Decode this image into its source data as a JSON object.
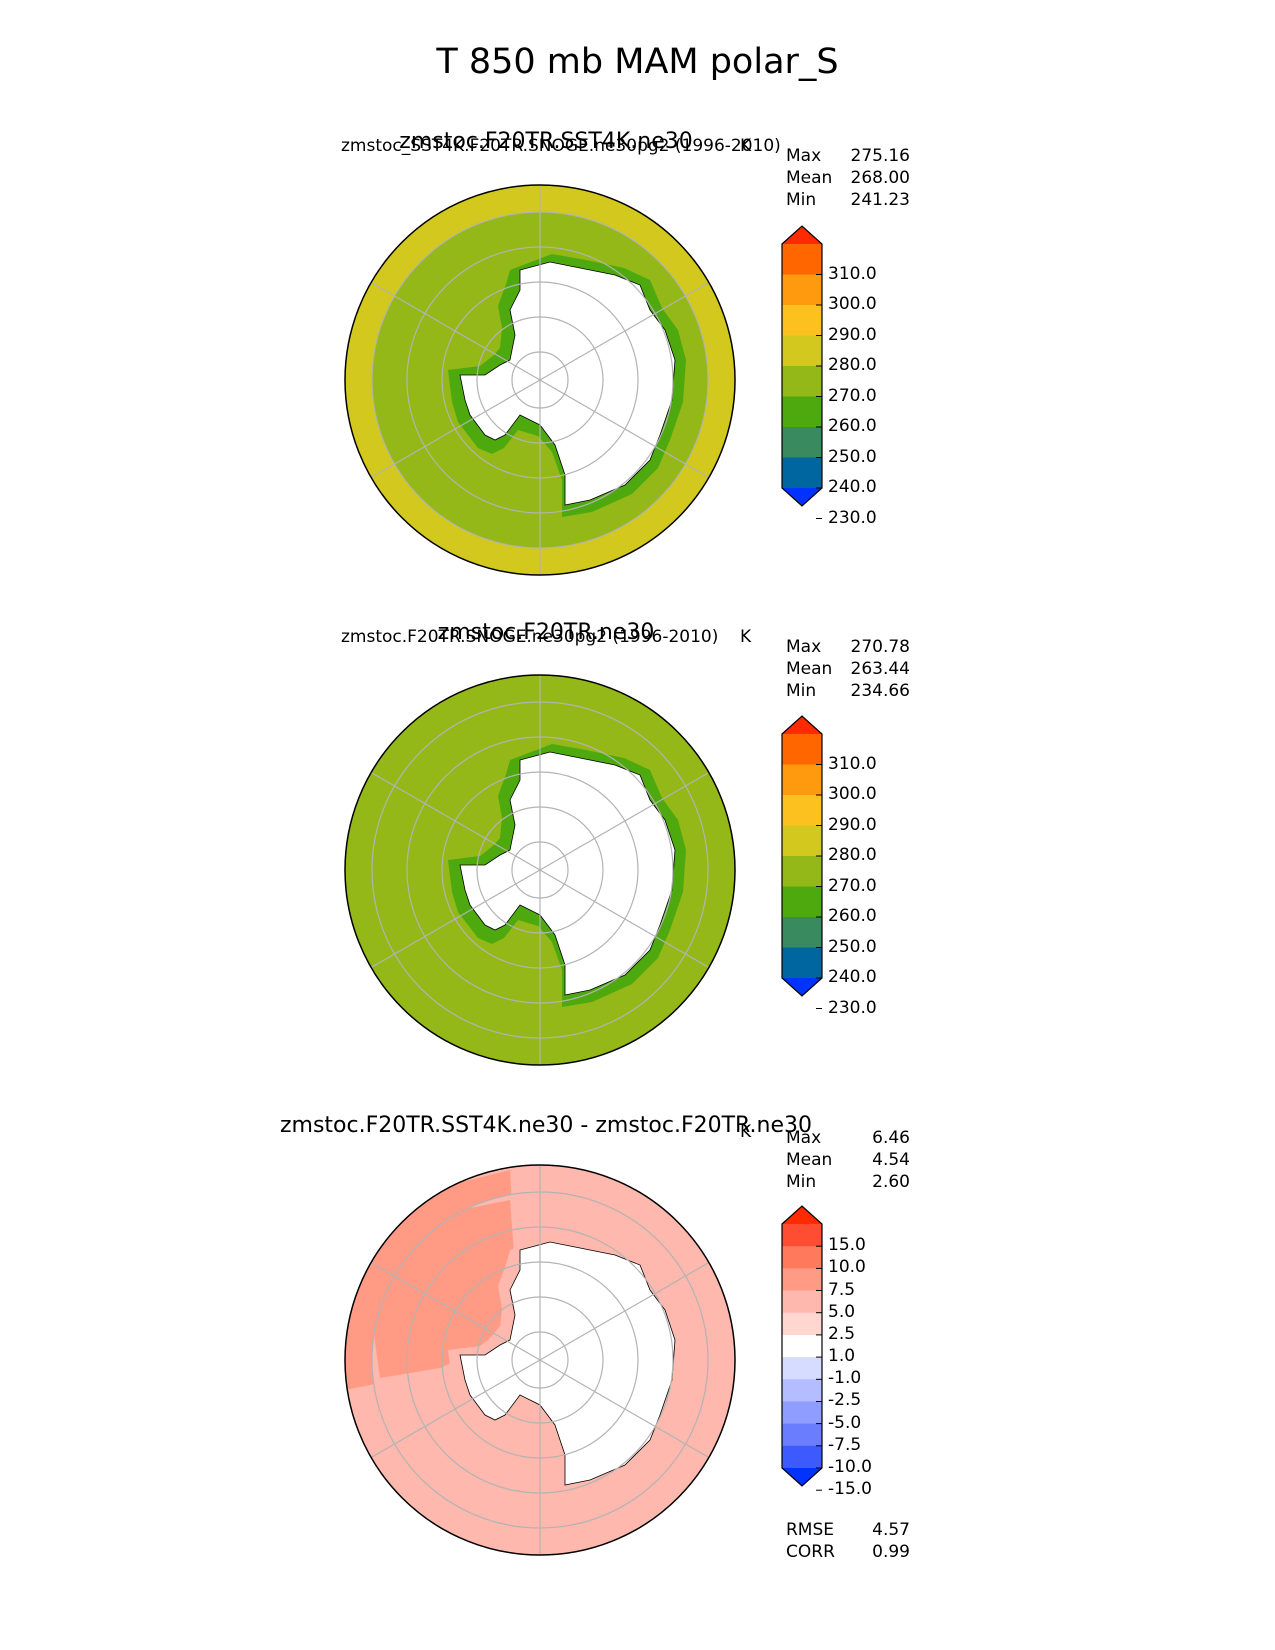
{
  "figure_title": "T 850 mb MAM polar_S",
  "chart_data": [
    {
      "type": "heatmap",
      "projection": "south-polar-stereographic",
      "title": "zmstoc.F20TR.SST4K.ne30",
      "subtitle": "zmstoc_SST4K.F20TR.SNOGE.ne30pg2 (1996-2010)",
      "units_label": "K",
      "stats": [
        {
          "label": "Max",
          "value": "275.16"
        },
        {
          "label": "Mean",
          "value": "268.00"
        },
        {
          "label": "Min",
          "value": "241.23"
        }
      ],
      "colorbar": {
        "levels": [
          "310.0",
          "300.0",
          "290.0",
          "280.0",
          "270.0",
          "260.0",
          "250.0",
          "240.0",
          "230.0"
        ],
        "colors": [
          "#ff2a00",
          "#ff6600",
          "#ff9a0e",
          "#fcc11e",
          "#d3c81d",
          "#94b817",
          "#4ea90f",
          "#3a8a5f",
          "#0066a0",
          "#0033ff"
        ]
      },
      "regions": {
        "outer": "#d3c81d",
        "inner": "#94b817",
        "coast": "#4ea90f",
        "land": "#ffffff"
      }
    },
    {
      "type": "heatmap",
      "projection": "south-polar-stereographic",
      "title": "zmstoc.F20TR.ne30",
      "subtitle": "zmstoc.F20TR.SNOGE.ne30pg2 (1996-2010)",
      "units_label": "K",
      "stats": [
        {
          "label": "Max",
          "value": "270.78"
        },
        {
          "label": "Mean",
          "value": "263.44"
        },
        {
          "label": "Min",
          "value": "234.66"
        }
      ],
      "colorbar": {
        "levels": [
          "310.0",
          "300.0",
          "290.0",
          "280.0",
          "270.0",
          "260.0",
          "250.0",
          "240.0",
          "230.0"
        ],
        "colors": [
          "#ff2a00",
          "#ff6600",
          "#ff9a0e",
          "#fcc11e",
          "#d3c81d",
          "#94b817",
          "#4ea90f",
          "#3a8a5f",
          "#0066a0",
          "#0033ff"
        ]
      },
      "regions": {
        "outer": "#94b817",
        "inner": "#94b817",
        "coast": "#4ea90f",
        "land": "#ffffff"
      }
    },
    {
      "type": "heatmap",
      "projection": "south-polar-stereographic",
      "title": "zmstoc.F20TR.SST4K.ne30 - zmstoc.F20TR.ne30",
      "units_label": "K",
      "stats": [
        {
          "label": "Max",
          "value": "6.46"
        },
        {
          "label": "Mean",
          "value": "4.54"
        },
        {
          "label": "Min",
          "value": "2.60"
        }
      ],
      "colorbar": {
        "levels": [
          "15.0",
          "10.0",
          "7.5",
          "5.0",
          "2.5",
          "1.0",
          "-1.0",
          "-2.5",
          "-5.0",
          "-7.5",
          "-10.0",
          "-15.0"
        ],
        "colors": [
          "#ff2a00",
          "#ff4d33",
          "#ff7a5c",
          "#ff9b85",
          "#ffb8ad",
          "#ffd6d0",
          "#ffffff",
          "#d6dcff",
          "#b3bdff",
          "#8f9dff",
          "#6b7dff",
          "#3d5aff",
          "#0033ff"
        ]
      },
      "regions": {
        "outer": "#ffb8ad",
        "inner": "#ffb8ad",
        "coast": "#ffb8ad",
        "land": "#ffffff",
        "west": "#ff9b85"
      },
      "metrics": [
        {
          "label": "RMSE",
          "value": "4.57"
        },
        {
          "label": "CORR",
          "value": "0.99"
        }
      ]
    }
  ]
}
